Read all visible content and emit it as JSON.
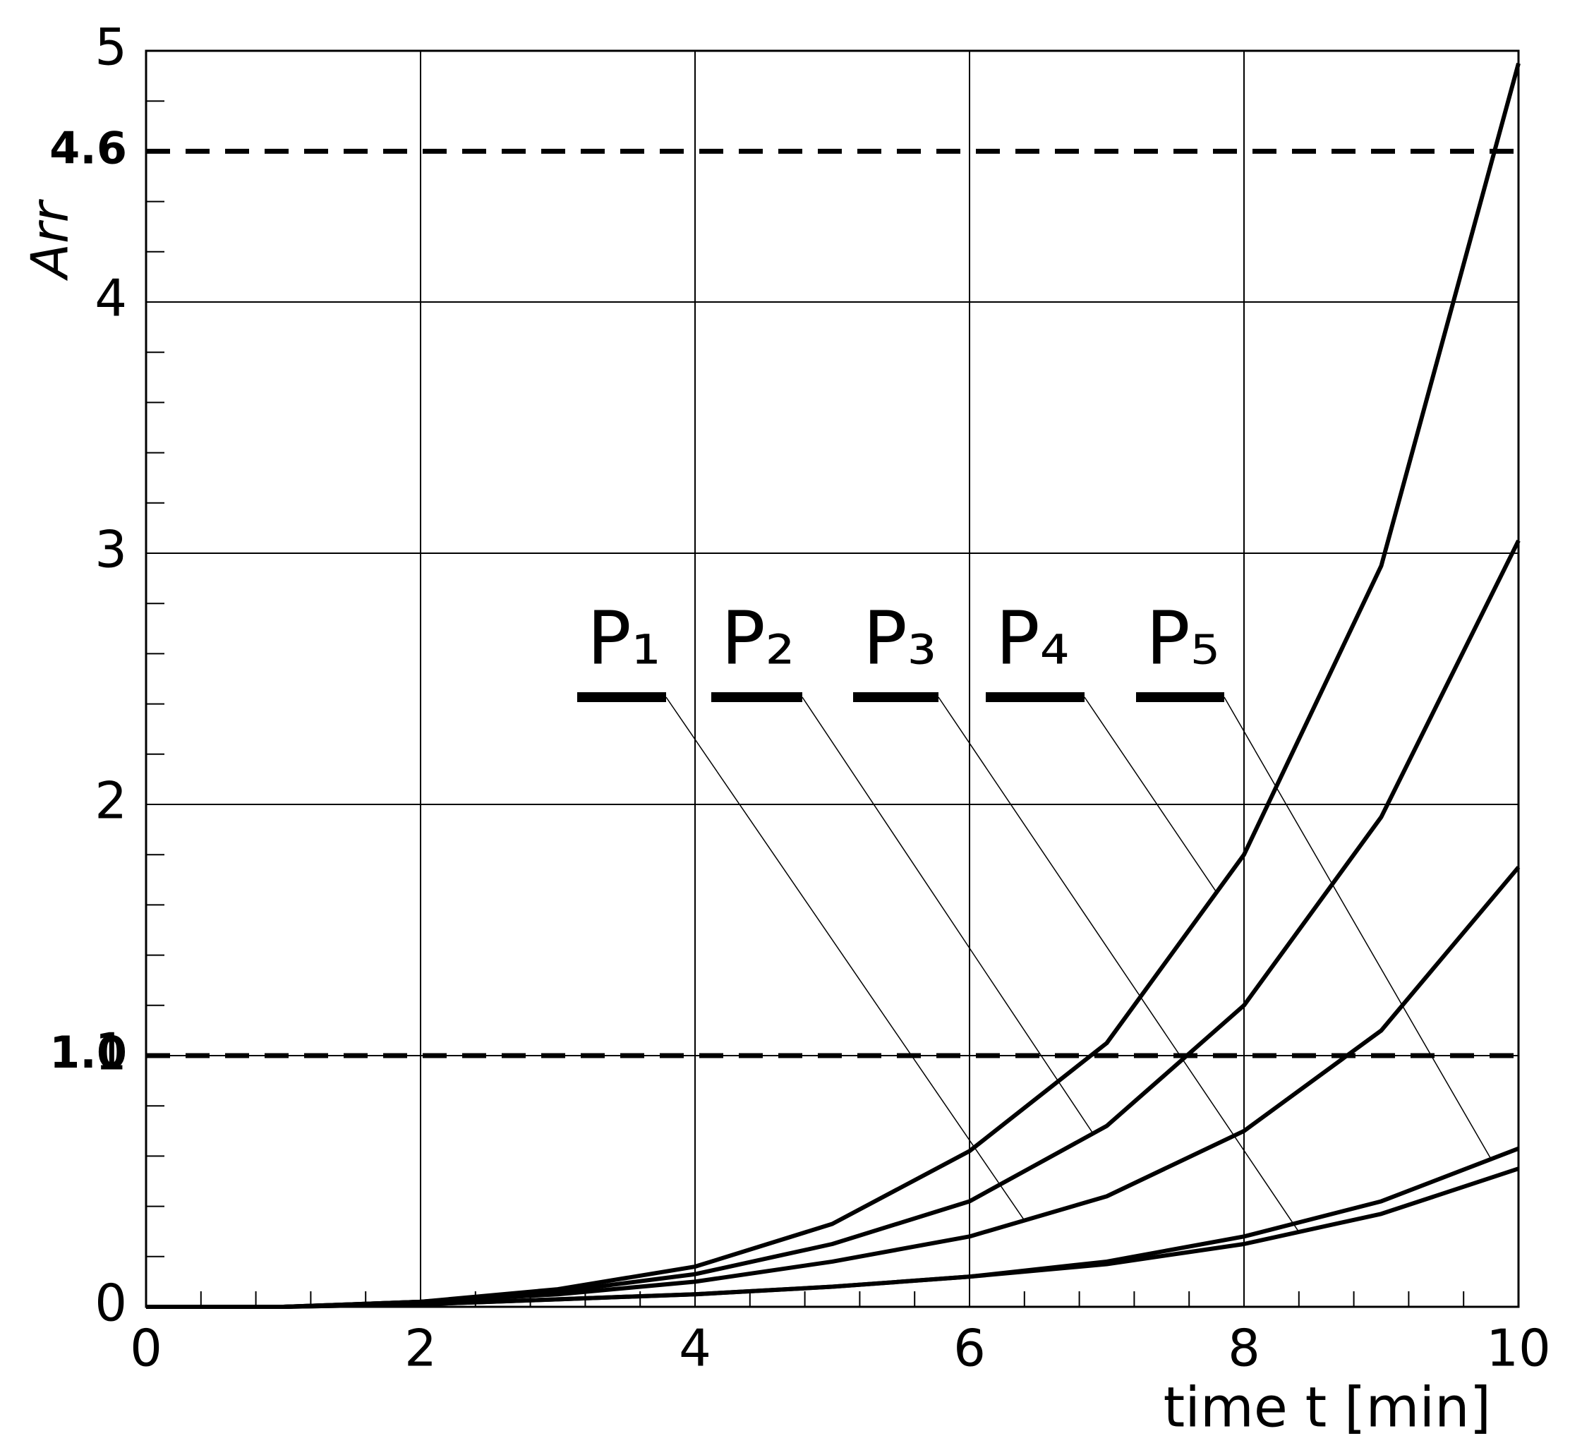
{
  "chart_data": {
    "type": "line",
    "x_label": "time t [min]",
    "y_label": "Arr",
    "x": [
      0,
      1,
      2,
      3,
      4,
      5,
      6,
      7,
      8,
      9,
      10
    ],
    "series": [
      {
        "name": "P₁",
        "color": "#000000",
        "values": [
          0,
          0,
          0.02,
          0.05,
          0.1,
          0.18,
          0.28,
          0.44,
          0.7,
          1.1,
          1.75
        ]
      },
      {
        "name": "P₂",
        "color": "#000000",
        "values": [
          0,
          0,
          0.02,
          0.06,
          0.13,
          0.25,
          0.42,
          0.72,
          1.2,
          1.95,
          3.05
        ]
      },
      {
        "name": "P₃",
        "color": "#000000",
        "values": [
          0,
          0,
          0.01,
          0.03,
          0.05,
          0.08,
          0.12,
          0.17,
          0.25,
          0.37,
          0.55
        ]
      },
      {
        "name": "P₄",
        "color": "#000000",
        "values": [
          0,
          0,
          0.02,
          0.07,
          0.16,
          0.33,
          0.62,
          1.05,
          1.8,
          2.95,
          4.95
        ]
      },
      {
        "name": "P₅",
        "color": "#000000",
        "values": [
          0,
          0,
          0.01,
          0.03,
          0.05,
          0.08,
          0.12,
          0.18,
          0.28,
          0.42,
          0.63
        ]
      }
    ],
    "xlim": [
      0,
      10
    ],
    "ylim": [
      0,
      5
    ],
    "xticks": [
      0,
      2,
      4,
      6,
      8,
      10
    ],
    "yticks": [
      0,
      1,
      2,
      3,
      4,
      5
    ],
    "x_minor_step": 0.4,
    "y_minor_step": 0.2,
    "grid": true,
    "reference_lines": [
      {
        "value": 4.6,
        "label": "4.6"
      },
      {
        "value": 1.0,
        "label": "1.0"
      }
    ]
  }
}
